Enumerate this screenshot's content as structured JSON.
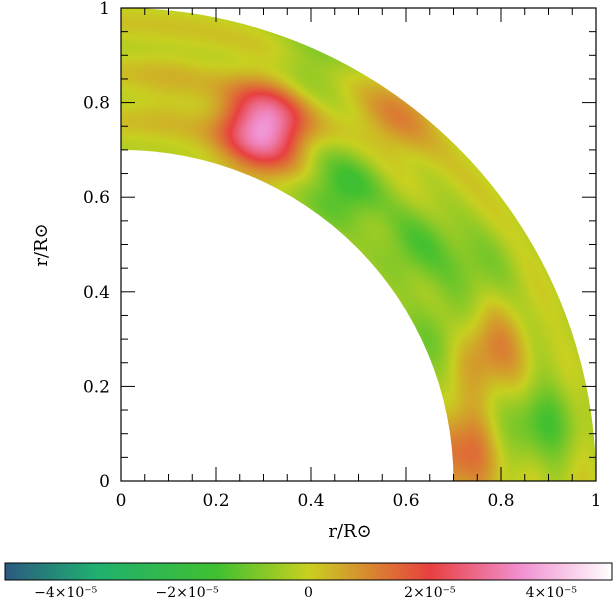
{
  "chart_data": {
    "type": "heatmap",
    "geometry": "quarter-annulus",
    "title": "",
    "xlabel": "r/R⊙",
    "ylabel": "r/R⊙",
    "xlim": [
      0,
      1
    ],
    "ylim": [
      0,
      1
    ],
    "inner_radius": 0.7,
    "outer_radius": 1.0,
    "x_ticks": [
      "0",
      "0.2",
      "0.4",
      "0.6",
      "0.8",
      "1"
    ],
    "y_ticks": [
      "0",
      "0.2",
      "0.4",
      "0.6",
      "0.8",
      "1"
    ],
    "colorbar": {
      "min": -5e-05,
      "max": 5e-05,
      "labels": [
        "−4×10⁻⁵",
        "−2×10⁻⁵",
        "0",
        "2×10⁻⁵",
        "4×10⁻⁵"
      ],
      "label_values": [
        -4e-05,
        -2e-05,
        0,
        2e-05,
        4e-05
      ],
      "colors": [
        "#2a5a80",
        "#20b070",
        "#40c030",
        "#c8d020",
        "#e84040",
        "#f090d0",
        "#ffffff"
      ]
    },
    "features": [
      {
        "x": 0.3,
        "y": 0.75,
        "value": 3.8e-05
      },
      {
        "x": 0.78,
        "y": 0.28,
        "value": 1.5e-05
      },
      {
        "x": 0.71,
        "y": 0.06,
        "value": 1.5e-05
      },
      {
        "x": 0.58,
        "y": 0.77,
        "value": 1e-05
      },
      {
        "x": 0.47,
        "y": 0.62,
        "value": -1.6e-05
      },
      {
        "x": 0.62,
        "y": 0.5,
        "value": -1.2e-05
      },
      {
        "x": 0.75,
        "y": 0.45,
        "value": -8e-06
      },
      {
        "x": 0.88,
        "y": 0.12,
        "value": -1.4e-05
      },
      {
        "x": 0.4,
        "y": 0.88,
        "value": -8e-06
      },
      {
        "x": 0.67,
        "y": 0.3,
        "value": -1e-05
      },
      {
        "x": 0.86,
        "y": 0.3,
        "value": -5e-06
      },
      {
        "x": 0.1,
        "y": 0.82,
        "value": 3e-06
      }
    ]
  }
}
